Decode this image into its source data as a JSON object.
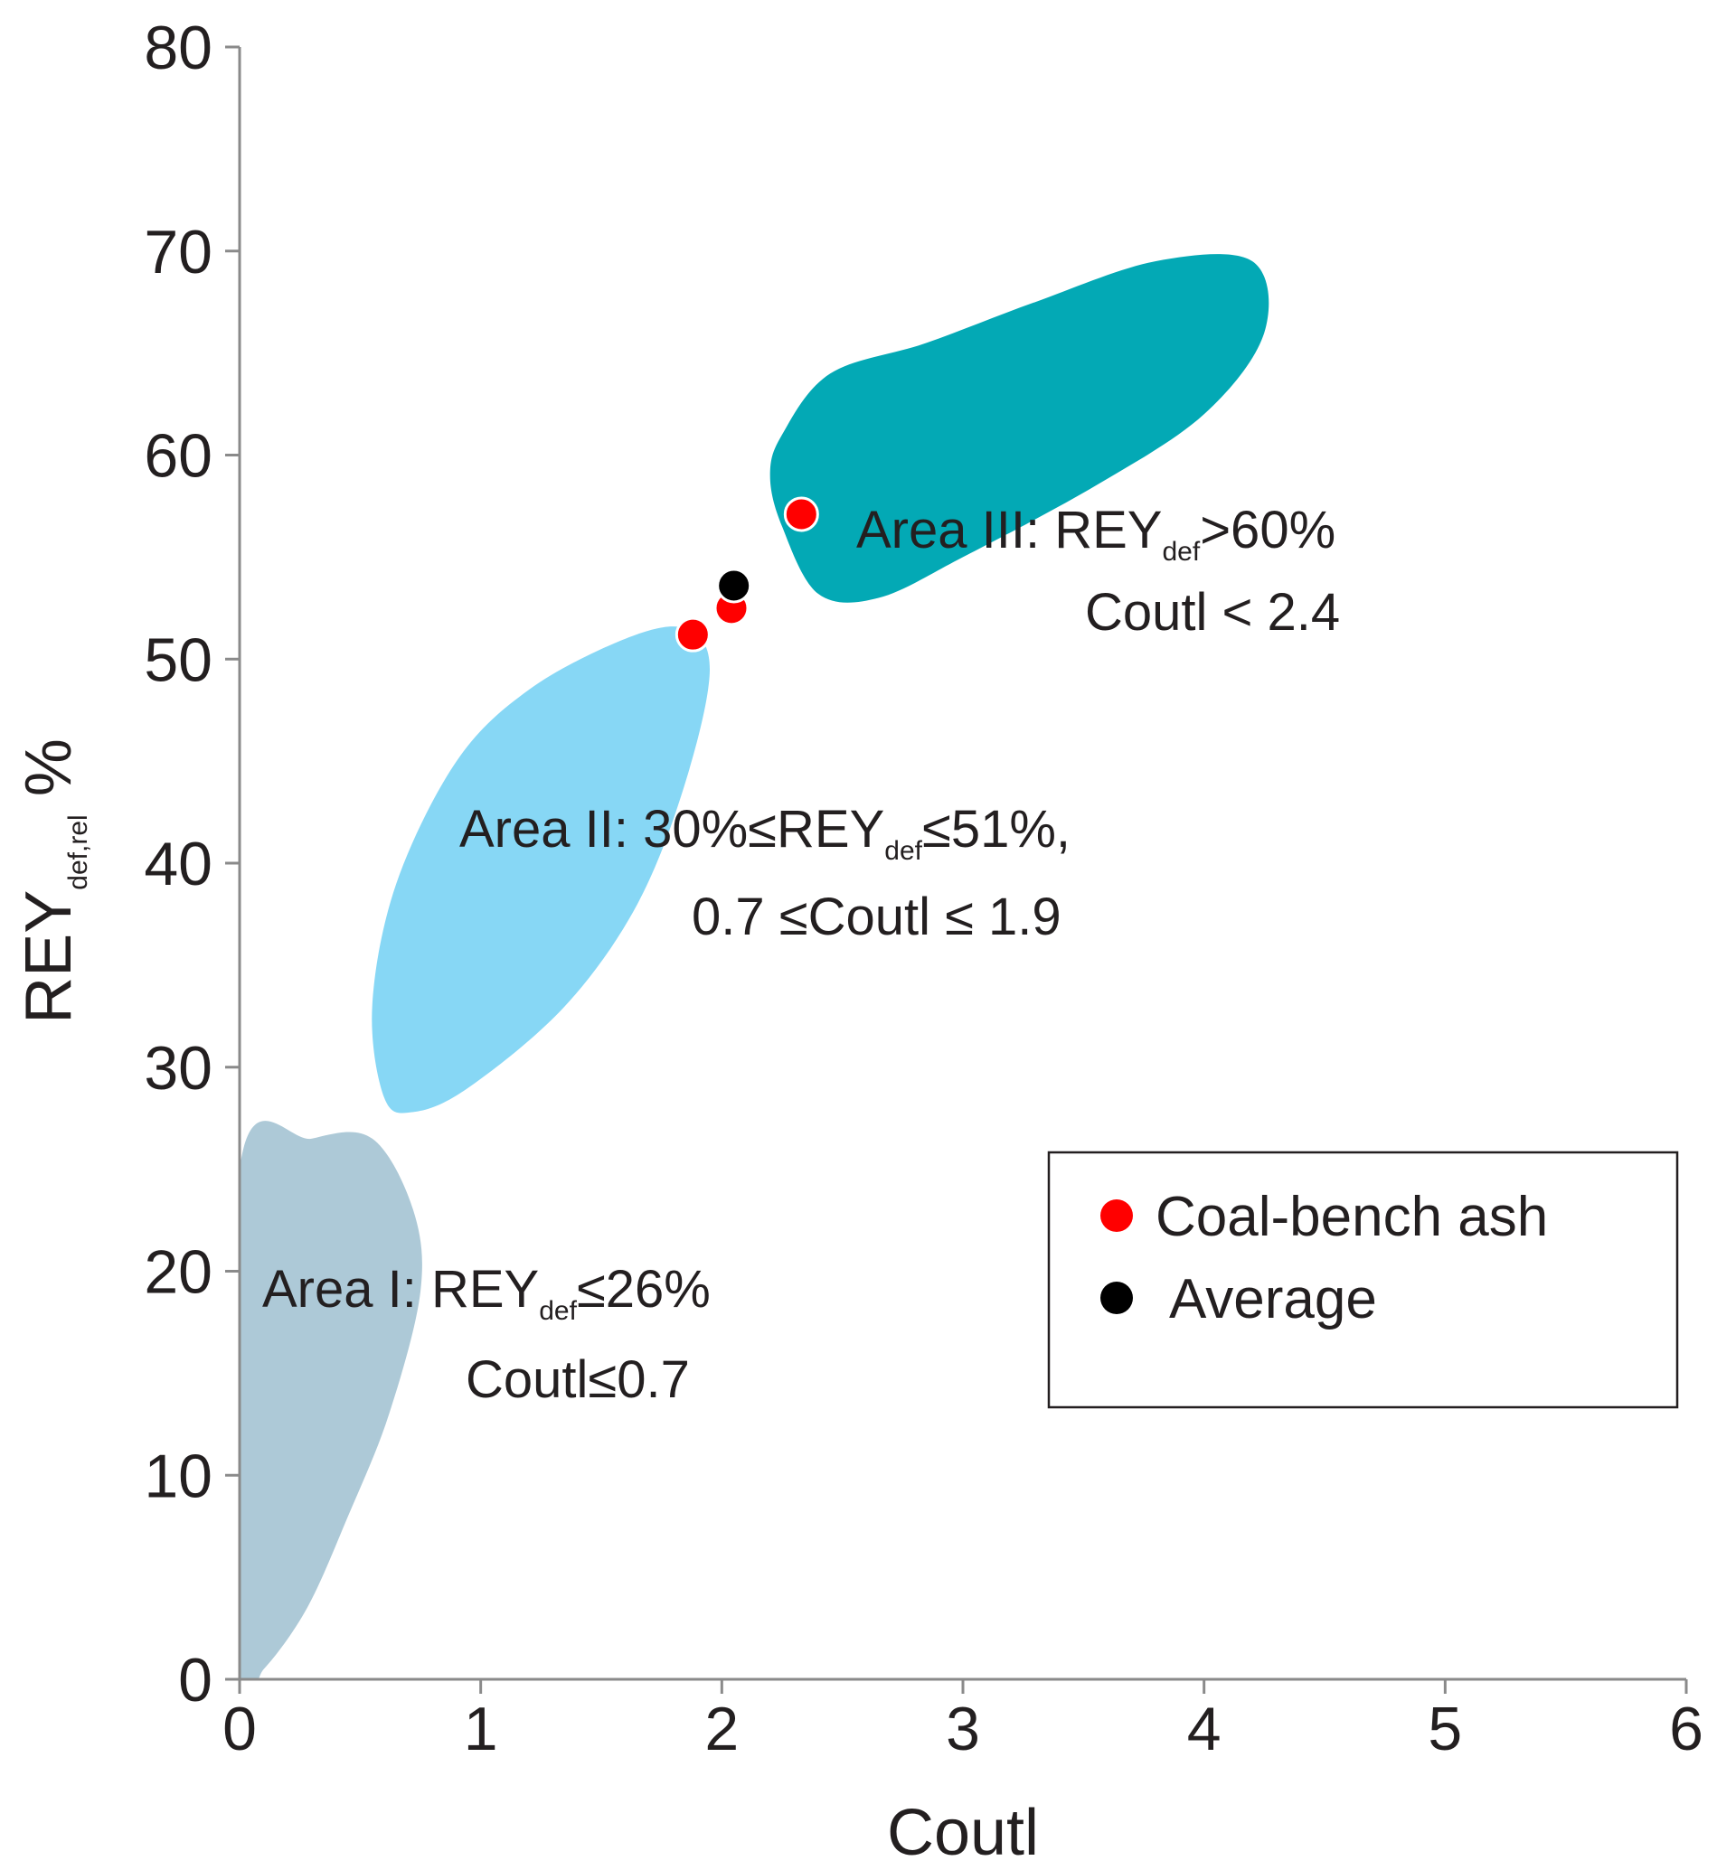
{
  "chart_data": {
    "type": "scatter",
    "xlabel": "Coutl",
    "ylabel": {
      "main": "REY",
      "sub": "def,rel",
      "suffix": " %"
    },
    "xlim": [
      0,
      6
    ],
    "ylim": [
      0,
      80
    ],
    "x_ticks": [
      "0",
      "1",
      "2",
      "3",
      "4",
      "5",
      "6"
    ],
    "y_ticks": [
      "0",
      "10",
      "20",
      "30",
      "40",
      "50",
      "60",
      "70",
      "80"
    ],
    "grid": false,
    "regions": [
      {
        "name": "Area I",
        "color": "#adc9d7",
        "label_lines": [
          [
            {
              "t": "Area I: REY"
            },
            {
              "t": "def",
              "sub": true
            },
            {
              "t": "≤26%"
            }
          ],
          [
            {
              "t": "Coutl≤0.7"
            }
          ]
        ],
        "outline": [
          [
            0.0,
            25.0
          ],
          [
            0.3,
            26.5
          ],
          [
            0.55,
            26.5
          ],
          [
            0.72,
            23.0
          ],
          [
            0.75,
            19.0
          ],
          [
            0.62,
            13.0
          ],
          [
            0.45,
            8.0
          ],
          [
            0.28,
            3.5
          ],
          [
            0.1,
            0.5
          ],
          [
            0.0,
            0.0
          ]
        ]
      },
      {
        "name": "Area II",
        "color": "#87d7f5",
        "label_lines": [
          [
            {
              "t": "Area II: 30%≤REY"
            },
            {
              "t": "def",
              "sub": true
            },
            {
              "t": "≤51%,"
            }
          ],
          [
            {
              "t": "0.7 ≤Coutl ≤ 1.9"
            }
          ]
        ],
        "outline": [
          [
            0.6,
            28.5
          ],
          [
            0.55,
            33.0
          ],
          [
            0.65,
            39.0
          ],
          [
            0.9,
            45.0
          ],
          [
            1.2,
            48.5
          ],
          [
            1.6,
            51.0
          ],
          [
            1.85,
            51.5
          ],
          [
            1.95,
            49.5
          ],
          [
            1.85,
            44.0
          ],
          [
            1.65,
            38.0
          ],
          [
            1.35,
            33.0
          ],
          [
            0.95,
            29.0
          ],
          [
            0.72,
            27.8
          ]
        ]
      },
      {
        "name": "Area III",
        "color": "#03a9b5",
        "label_lines": [
          [
            {
              "t": "Area III: REY"
            },
            {
              "t": "def",
              "sub": true
            },
            {
              "t": ">60%"
            }
          ],
          [
            {
              "t": "Coutl < 2.4"
            }
          ]
        ],
        "outline": [
          [
            2.2,
            59.0
          ],
          [
            2.25,
            61.0
          ],
          [
            2.45,
            64.0
          ],
          [
            2.85,
            65.5
          ],
          [
            3.3,
            67.5
          ],
          [
            3.8,
            69.5
          ],
          [
            4.2,
            69.5
          ],
          [
            4.25,
            66.0
          ],
          [
            4.0,
            62.0
          ],
          [
            3.55,
            58.5
          ],
          [
            3.0,
            55.0
          ],
          [
            2.65,
            53.0
          ],
          [
            2.4,
            53.2
          ],
          [
            2.25,
            56.5
          ]
        ]
      }
    ],
    "series": [
      {
        "name": "Coal-bench ash",
        "color": "#ff0000",
        "points": [
          [
            2.33,
            57.1
          ],
          [
            2.04,
            52.5
          ],
          [
            1.88,
            51.2
          ]
        ]
      },
      {
        "name": "Average",
        "color": "#000000",
        "points": [
          [
            2.05,
            53.6
          ]
        ]
      }
    ],
    "legend": {
      "placement": "bottom-right",
      "items": [
        "Coal-bench ash",
        "Average"
      ]
    }
  }
}
